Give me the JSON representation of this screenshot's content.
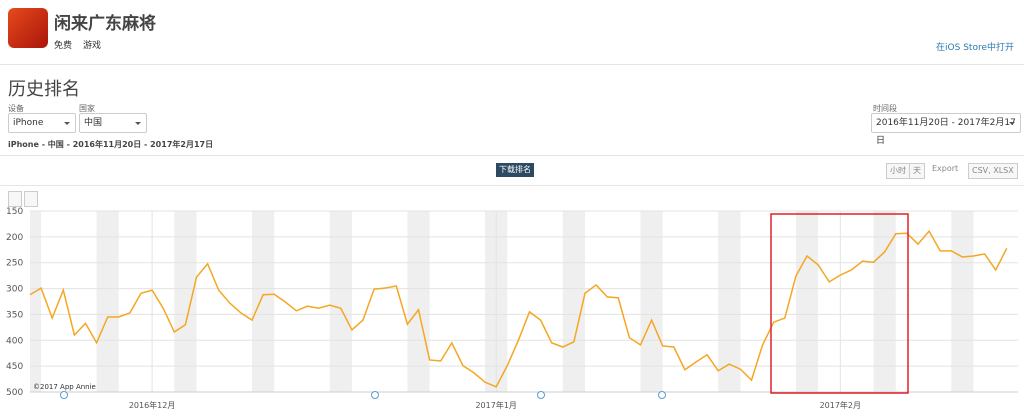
{
  "header": {
    "app_name": "闲来广东麻将",
    "price": "免费",
    "category": "游戏",
    "store_link": "在iOS Store中打开"
  },
  "section_title": "历史排名",
  "filters": {
    "device_label": "设备",
    "device": "iPhone",
    "country_label": "国家",
    "country": "中国",
    "period_label": "时间段",
    "period": "2016年11月20日 - 2017年2月17日"
  },
  "breadcrumb": "iPhone - 中国 - 2016年11月20日 - 2017年2月17日",
  "toolbar": {
    "tab": "下载排名",
    "hour": "小时",
    "day": "天",
    "export": "Export",
    "formats": "CSV, XLSX"
  },
  "chart_data": {
    "type": "line",
    "watermark": "©2017 App Annie",
    "categories": [
      null,
      null,
      null,
      null,
      null,
      null,
      null,
      null,
      null,
      null,
      null,
      "2016年12月",
      null,
      null,
      null,
      null,
      null,
      null,
      null,
      null,
      null,
      null,
      null,
      null,
      null,
      null,
      null,
      null,
      null,
      null,
      null,
      null,
      null,
      null,
      null,
      null,
      null,
      null,
      null,
      null,
      null,
      null,
      "2017年1月",
      null,
      null,
      null,
      null,
      null,
      null,
      null,
      null,
      null,
      null,
      null,
      null,
      null,
      null,
      null,
      null,
      null,
      null,
      null,
      null,
      null,
      null,
      null,
      null,
      null,
      null,
      null,
      null,
      null,
      null,
      "2017年2月",
      null,
      null,
      null,
      null,
      null,
      null,
      null,
      null,
      null,
      null,
      null,
      null,
      null,
      null,
      null
    ],
    "series": [
      {
        "name": "下载排名",
        "color": "#f5a623",
        "values": [
          312,
          299,
          357,
          303,
          390,
          367,
          405,
          355,
          355,
          347,
          309,
          303,
          338,
          384,
          370,
          278,
          252,
          303,
          328,
          347,
          361,
          312,
          311,
          326,
          343,
          334,
          338,
          332,
          338,
          380,
          361,
          301,
          299,
          295,
          369,
          341,
          438,
          440,
          405,
          449,
          463,
          481,
          490,
          449,
          400,
          345,
          361,
          405,
          413,
          403,
          309,
          293,
          316,
          318,
          395,
          409,
          361,
          411,
          413,
          457,
          442,
          428,
          459,
          446,
          456,
          477,
          409,
          365,
          357,
          276,
          237,
          254,
          287,
          274,
          264,
          247,
          249,
          229,
          194,
          193,
          214,
          189,
          227,
          227,
          239,
          237,
          233,
          264,
          222
        ]
      }
    ],
    "ylim": [
      150,
      500
    ],
    "y_inverted": true,
    "yticks": [
      150,
      200,
      250,
      300,
      350,
      400,
      450,
      500
    ],
    "grid": true
  }
}
